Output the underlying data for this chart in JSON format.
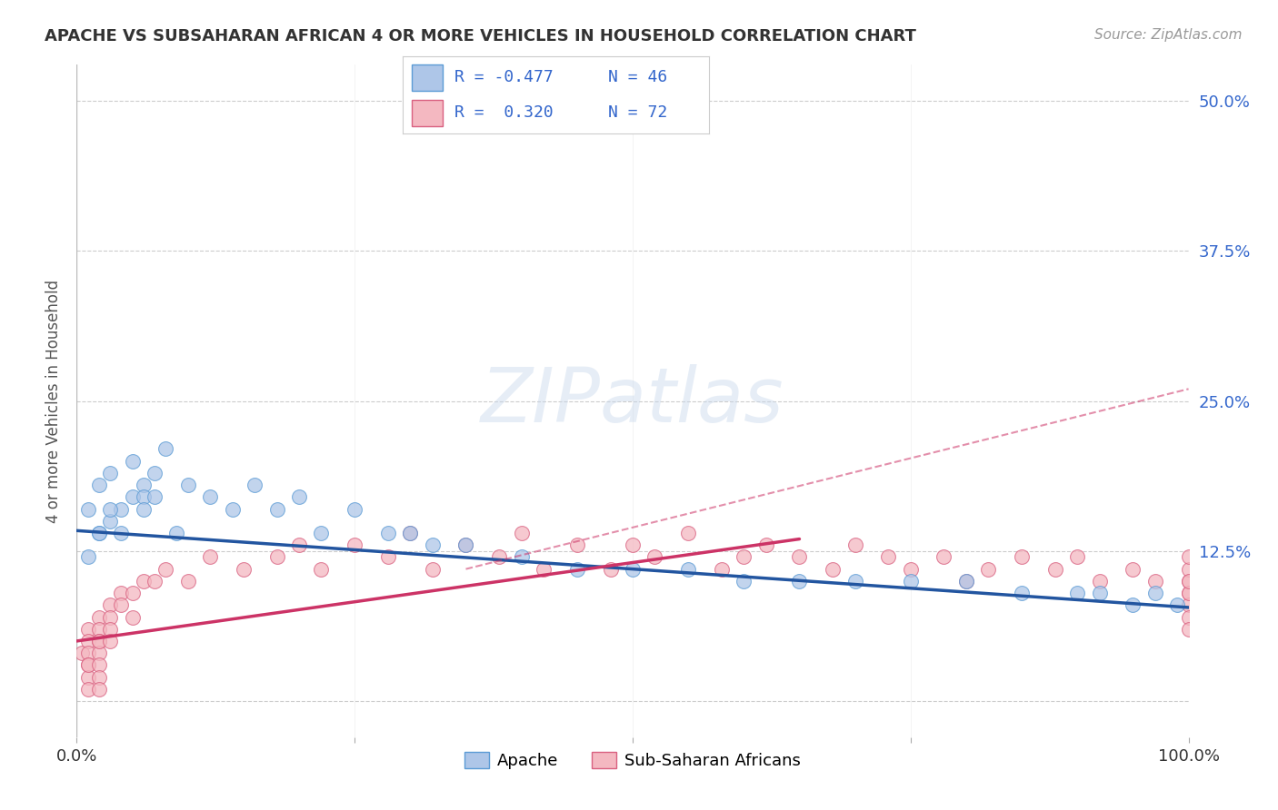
{
  "title": "APACHE VS SUBSAHARAN AFRICAN 4 OR MORE VEHICLES IN HOUSEHOLD CORRELATION CHART",
  "source": "Source: ZipAtlas.com",
  "ylabel": "4 or more Vehicles in Household",
  "xlim": [
    0,
    100
  ],
  "ylim": [
    -3,
    53
  ],
  "yticks": [
    0,
    12.5,
    25.0,
    37.5,
    50.0
  ],
  "apache_color": "#aec6e8",
  "apache_edge": "#5b9bd5",
  "subsaharan_color": "#f4b8c1",
  "subsaharan_edge": "#d96080",
  "line_apache_color": "#2255a0",
  "line_subsaharan_color": "#cc3366",
  "grid_color": "#cccccc",
  "tick_color": "#3366cc",
  "background": "#ffffff",
  "apache_line_x0": 0,
  "apache_line_y0": 14.2,
  "apache_line_x1": 100,
  "apache_line_y1": 7.8,
  "subsaharan_solid_x0": 0,
  "subsaharan_solid_y0": 5.0,
  "subsaharan_solid_x1": 65,
  "subsaharan_solid_y1": 13.5,
  "subsaharan_dash_x0": 35,
  "subsaharan_dash_y0": 11.0,
  "subsaharan_dash_x1": 100,
  "subsaharan_dash_y1": 26.0,
  "apache_pts_x": [
    1,
    1,
    2,
    2,
    3,
    3,
    4,
    5,
    5,
    6,
    6,
    7,
    7,
    8,
    10,
    12,
    14,
    16,
    18,
    20,
    25,
    28,
    30,
    32,
    35,
    40,
    45,
    50,
    55,
    60,
    65,
    70,
    75,
    80,
    85,
    90,
    92,
    95,
    97,
    99,
    2,
    3,
    4,
    6,
    9,
    22
  ],
  "apache_pts_y": [
    16,
    12,
    18,
    14,
    19,
    15,
    16,
    20,
    17,
    18,
    17,
    19,
    17,
    21,
    18,
    17,
    16,
    18,
    16,
    17,
    16,
    14,
    14,
    13,
    13,
    12,
    11,
    11,
    11,
    10,
    10,
    10,
    10,
    10,
    9,
    9,
    9,
    8,
    9,
    8,
    14,
    16,
    14,
    16,
    14,
    14
  ],
  "subsaharan_pts_x": [
    0.5,
    1,
    1,
    1,
    1,
    1,
    1,
    1,
    2,
    2,
    2,
    2,
    2,
    2,
    2,
    2,
    3,
    3,
    3,
    3,
    4,
    4,
    5,
    5,
    6,
    7,
    8,
    10,
    12,
    15,
    18,
    20,
    22,
    25,
    28,
    30,
    32,
    35,
    38,
    40,
    42,
    45,
    48,
    50,
    52,
    55,
    58,
    60,
    62,
    65,
    68,
    70,
    73,
    75,
    78,
    80,
    82,
    85,
    88,
    90,
    92,
    95,
    97,
    100,
    100,
    100,
    100,
    100,
    100,
    100,
    100,
    100
  ],
  "subsaharan_pts_y": [
    4,
    6,
    5,
    4,
    3,
    2,
    1,
    3,
    7,
    6,
    5,
    4,
    3,
    2,
    1,
    5,
    8,
    7,
    6,
    5,
    9,
    8,
    9,
    7,
    10,
    10,
    11,
    10,
    12,
    11,
    12,
    13,
    11,
    13,
    12,
    14,
    11,
    13,
    12,
    14,
    11,
    13,
    11,
    13,
    12,
    14,
    11,
    12,
    13,
    12,
    11,
    13,
    12,
    11,
    12,
    10,
    11,
    12,
    11,
    12,
    10,
    11,
    10,
    9,
    8,
    7,
    10,
    11,
    12,
    6,
    9,
    10
  ]
}
